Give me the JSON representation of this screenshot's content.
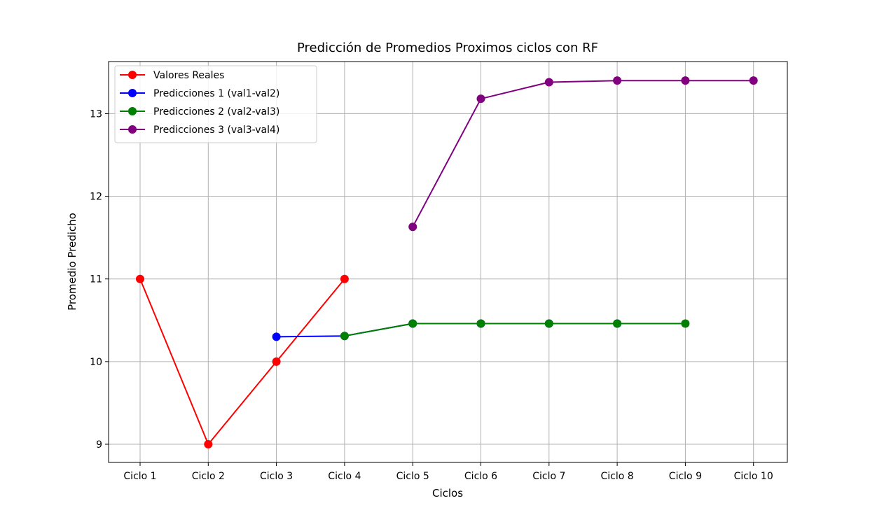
{
  "chart_data": {
    "type": "line",
    "title": "Predicción de Promedios Proximos ciclos con RF",
    "xlabel": "Ciclos",
    "ylabel": "Promedio Predicho",
    "categories": [
      "Ciclo 1",
      "Ciclo 2",
      "Ciclo 3",
      "Ciclo 4",
      "Ciclo 5",
      "Ciclo 6",
      "Ciclo 7",
      "Ciclo 8",
      "Ciclo 9",
      "Ciclo 10"
    ],
    "ylim": [
      8.78,
      13.63
    ],
    "yticks": [
      9,
      10,
      11,
      12,
      13
    ],
    "grid": true,
    "legend_position": "top-left",
    "series": [
      {
        "name": "Valores Reales",
        "color": "#ff0000",
        "x": [
          "Ciclo 1",
          "Ciclo 2",
          "Ciclo 3",
          "Ciclo 4"
        ],
        "values": [
          11,
          9,
          10,
          11
        ]
      },
      {
        "name": "Predicciones 1 (val1-val2)",
        "color": "#0000ff",
        "x": [
          "Ciclo 3",
          "Ciclo 4",
          "Ciclo 5",
          "Ciclo 6",
          "Ciclo 7",
          "Ciclo 8"
        ],
        "values": [
          10.3,
          10.31,
          10.46,
          10.46,
          10.46,
          10.46
        ]
      },
      {
        "name": "Predicciones 2 (val2-val3)",
        "color": "#008000",
        "x": [
          "Ciclo 4",
          "Ciclo 5",
          "Ciclo 6",
          "Ciclo 7",
          "Ciclo 8",
          "Ciclo 9"
        ],
        "values": [
          10.31,
          10.46,
          10.46,
          10.46,
          10.46,
          10.46
        ]
      },
      {
        "name": "Predicciones 3 (val3-val4)",
        "color": "#800080",
        "x": [
          "Ciclo 5",
          "Ciclo 6",
          "Ciclo 7",
          "Ciclo 8",
          "Ciclo 9",
          "Ciclo 10"
        ],
        "values": [
          11.63,
          13.18,
          13.38,
          13.4,
          13.4,
          13.4
        ]
      }
    ]
  }
}
